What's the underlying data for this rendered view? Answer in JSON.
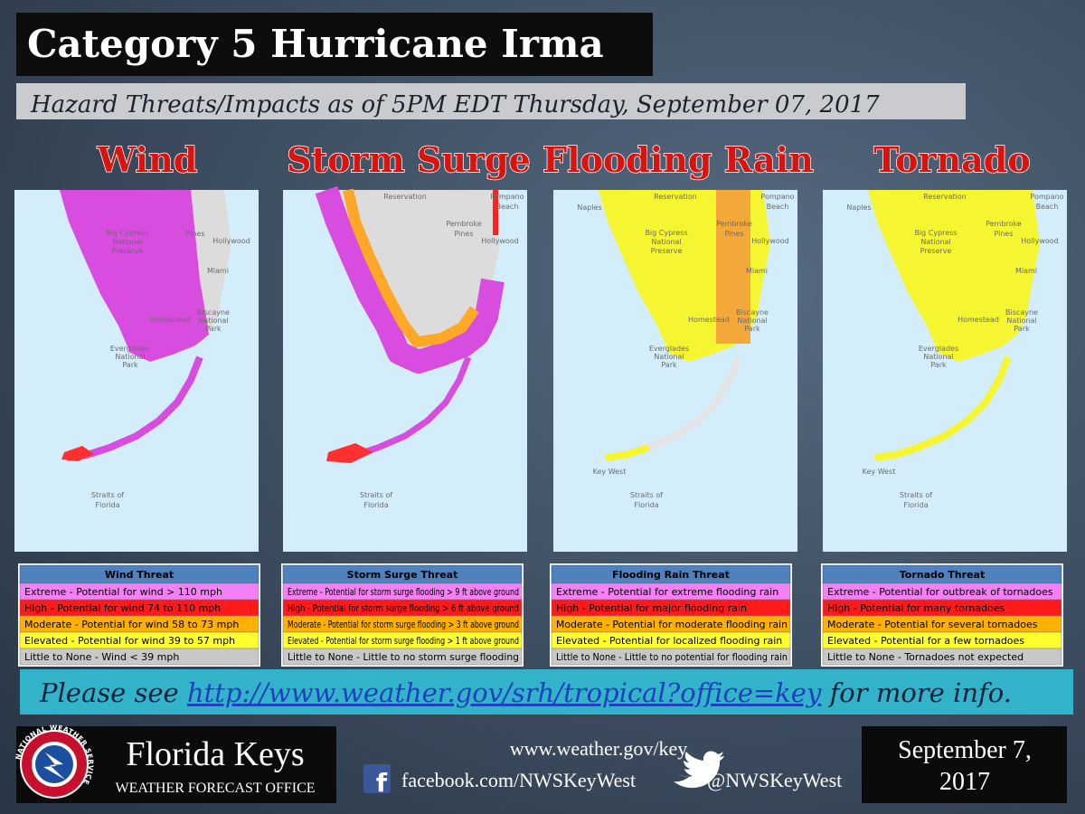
{
  "header": {
    "title": "Category 5 Hurricane Irma",
    "subtitle": "Hazard Threats/Impacts as of 5PM EDT Thursday, September 07, 2017"
  },
  "panels": [
    {
      "heading": "Wind",
      "map_labels": [
        "Big Cypress",
        "National",
        "Preserve",
        "Pines",
        "Hollywood",
        "Miami",
        "Homestead",
        "Biscayne",
        "National",
        "Park",
        "Everglades",
        "National",
        "Park",
        "Straits of",
        "Florida"
      ],
      "legend": {
        "title": "Wind Threat",
        "rows": [
          "Extreme - Potential for wind > 110 mph",
          "High - Potential for wind 74 to 110 mph",
          "Moderate - Potential for wind 58 to 73 mph",
          "Elevated - Potential for wind 39 to 57 mph",
          "Little to None - Wind < 39 mph"
        ]
      }
    },
    {
      "heading": "Storm Surge",
      "map_labels": [
        "Reservation",
        "Pompano",
        "Beach",
        "Pembroke",
        "Pines",
        "Hollywood",
        "Straits of",
        "Florida"
      ],
      "legend": {
        "title": "Storm Surge Threat",
        "rows": [
          "Extreme - Potential for storm surge flooding > 9 ft above ground",
          "High - Potential for storm surge flooding > 6 ft above ground",
          "Moderate - Potential for storm surge flooding > 3 ft above ground",
          "Elevated - Potential for storm surge flooding > 1 ft above ground",
          "Little to None - Little to no storm surge flooding"
        ]
      }
    },
    {
      "heading": "Flooding Rain",
      "map_labels": [
        "Naples",
        "Reservation",
        "Pompano",
        "Beach",
        "Big Cypress",
        "National",
        "Preserve",
        "Pembroke",
        "Pines",
        "Hollywood",
        "Miami",
        "Homestead",
        "Biscayne",
        "National",
        "Park",
        "Everglades",
        "National",
        "Park",
        "Key West",
        "Straits of",
        "Florida"
      ],
      "legend": {
        "title": "Flooding Rain Threat",
        "rows": [
          "Extreme - Potential for extreme flooding rain",
          "High - Potential for major flooding rain",
          "Moderate - Potential for moderate flooding rain",
          "Elevated - Potential for localized flooding rain",
          "Little to None - Little to no potential for flooding rain"
        ]
      }
    },
    {
      "heading": "Tornado",
      "map_labels": [
        "Naples",
        "Reservation",
        "Pompano",
        "Beach",
        "Big Cypress",
        "National",
        "Preserve",
        "Pembroke",
        "Pines",
        "Hollywood",
        "Miami",
        "Homestead",
        "Biscayne",
        "National",
        "Park",
        "Everglades",
        "National",
        "Park",
        "Key West",
        "Straits of",
        "Florida"
      ],
      "legend": {
        "title": "Tornado Threat",
        "rows": [
          "Extreme - Potential for outbreak of tornadoes",
          "High - Potential for many  tornadoes",
          "Moderate - Potential for several tornadoes",
          "Elevated - Potential for a few tornadoes",
          "Little to None - Tornadoes not expected"
        ]
      }
    }
  ],
  "banner": {
    "prefix": "Please see ",
    "link": "http://www.weather.gov/srh/tropical?office=key",
    "suffix": " for more info."
  },
  "footer": {
    "logo_text": "NATIONAL WEATHER SERVICE",
    "office": "Florida Keys",
    "office_sub": "WEATHER FORECAST OFFICE",
    "website": "www.weather.gov/key",
    "facebook": "facebook.com/NWSKeyWest",
    "twitter": "@NWSKeyWest",
    "date_lines": [
      "September 7,",
      "2017"
    ]
  }
}
